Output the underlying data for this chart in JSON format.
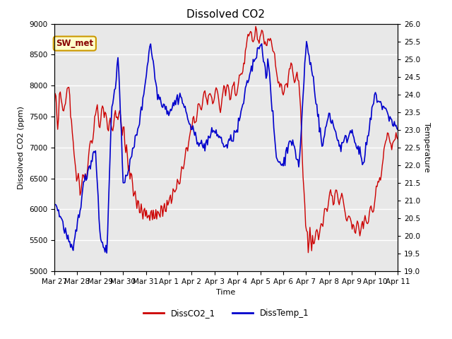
{
  "title": "Dissolved CO2",
  "xlabel": "Time",
  "ylabel_left": "Dissolved CO2 (ppm)",
  "ylabel_right": "Temperature",
  "ylim_left": [
    5000,
    9000
  ],
  "ylim_right": [
    19.0,
    26.0
  ],
  "yticks_left": [
    5000,
    5500,
    6000,
    6500,
    7000,
    7500,
    8000,
    8500,
    9000
  ],
  "yticks_right": [
    19.0,
    19.5,
    20.0,
    20.5,
    21.0,
    21.5,
    22.0,
    22.5,
    23.0,
    23.5,
    24.0,
    24.5,
    25.0,
    25.5,
    26.0
  ],
  "xtick_labels": [
    "Mar 27",
    "Mar 28",
    "Mar 29",
    "Mar 30",
    "Mar 31",
    "Apr 1",
    "Apr 2",
    "Apr 3",
    "Apr 4",
    "Apr 5",
    "Apr 6",
    "Apr 7",
    "Apr 8",
    "Apr 9",
    "Apr 10",
    "Apr 11"
  ],
  "color_co2": "#cc0000",
  "color_temp": "#0000cc",
  "legend_label_co2": "DissCO2_1",
  "legend_label_temp": "DissTemp_1",
  "box_label": "SW_met",
  "box_facecolor": "#ffffcc",
  "box_edgecolor": "#cc9900",
  "box_textcolor": "#880000",
  "background_color": "#e8e8e8",
  "grid_color": "#ffffff",
  "title_fontsize": 11,
  "axis_label_fontsize": 8,
  "tick_fontsize": 7.5
}
